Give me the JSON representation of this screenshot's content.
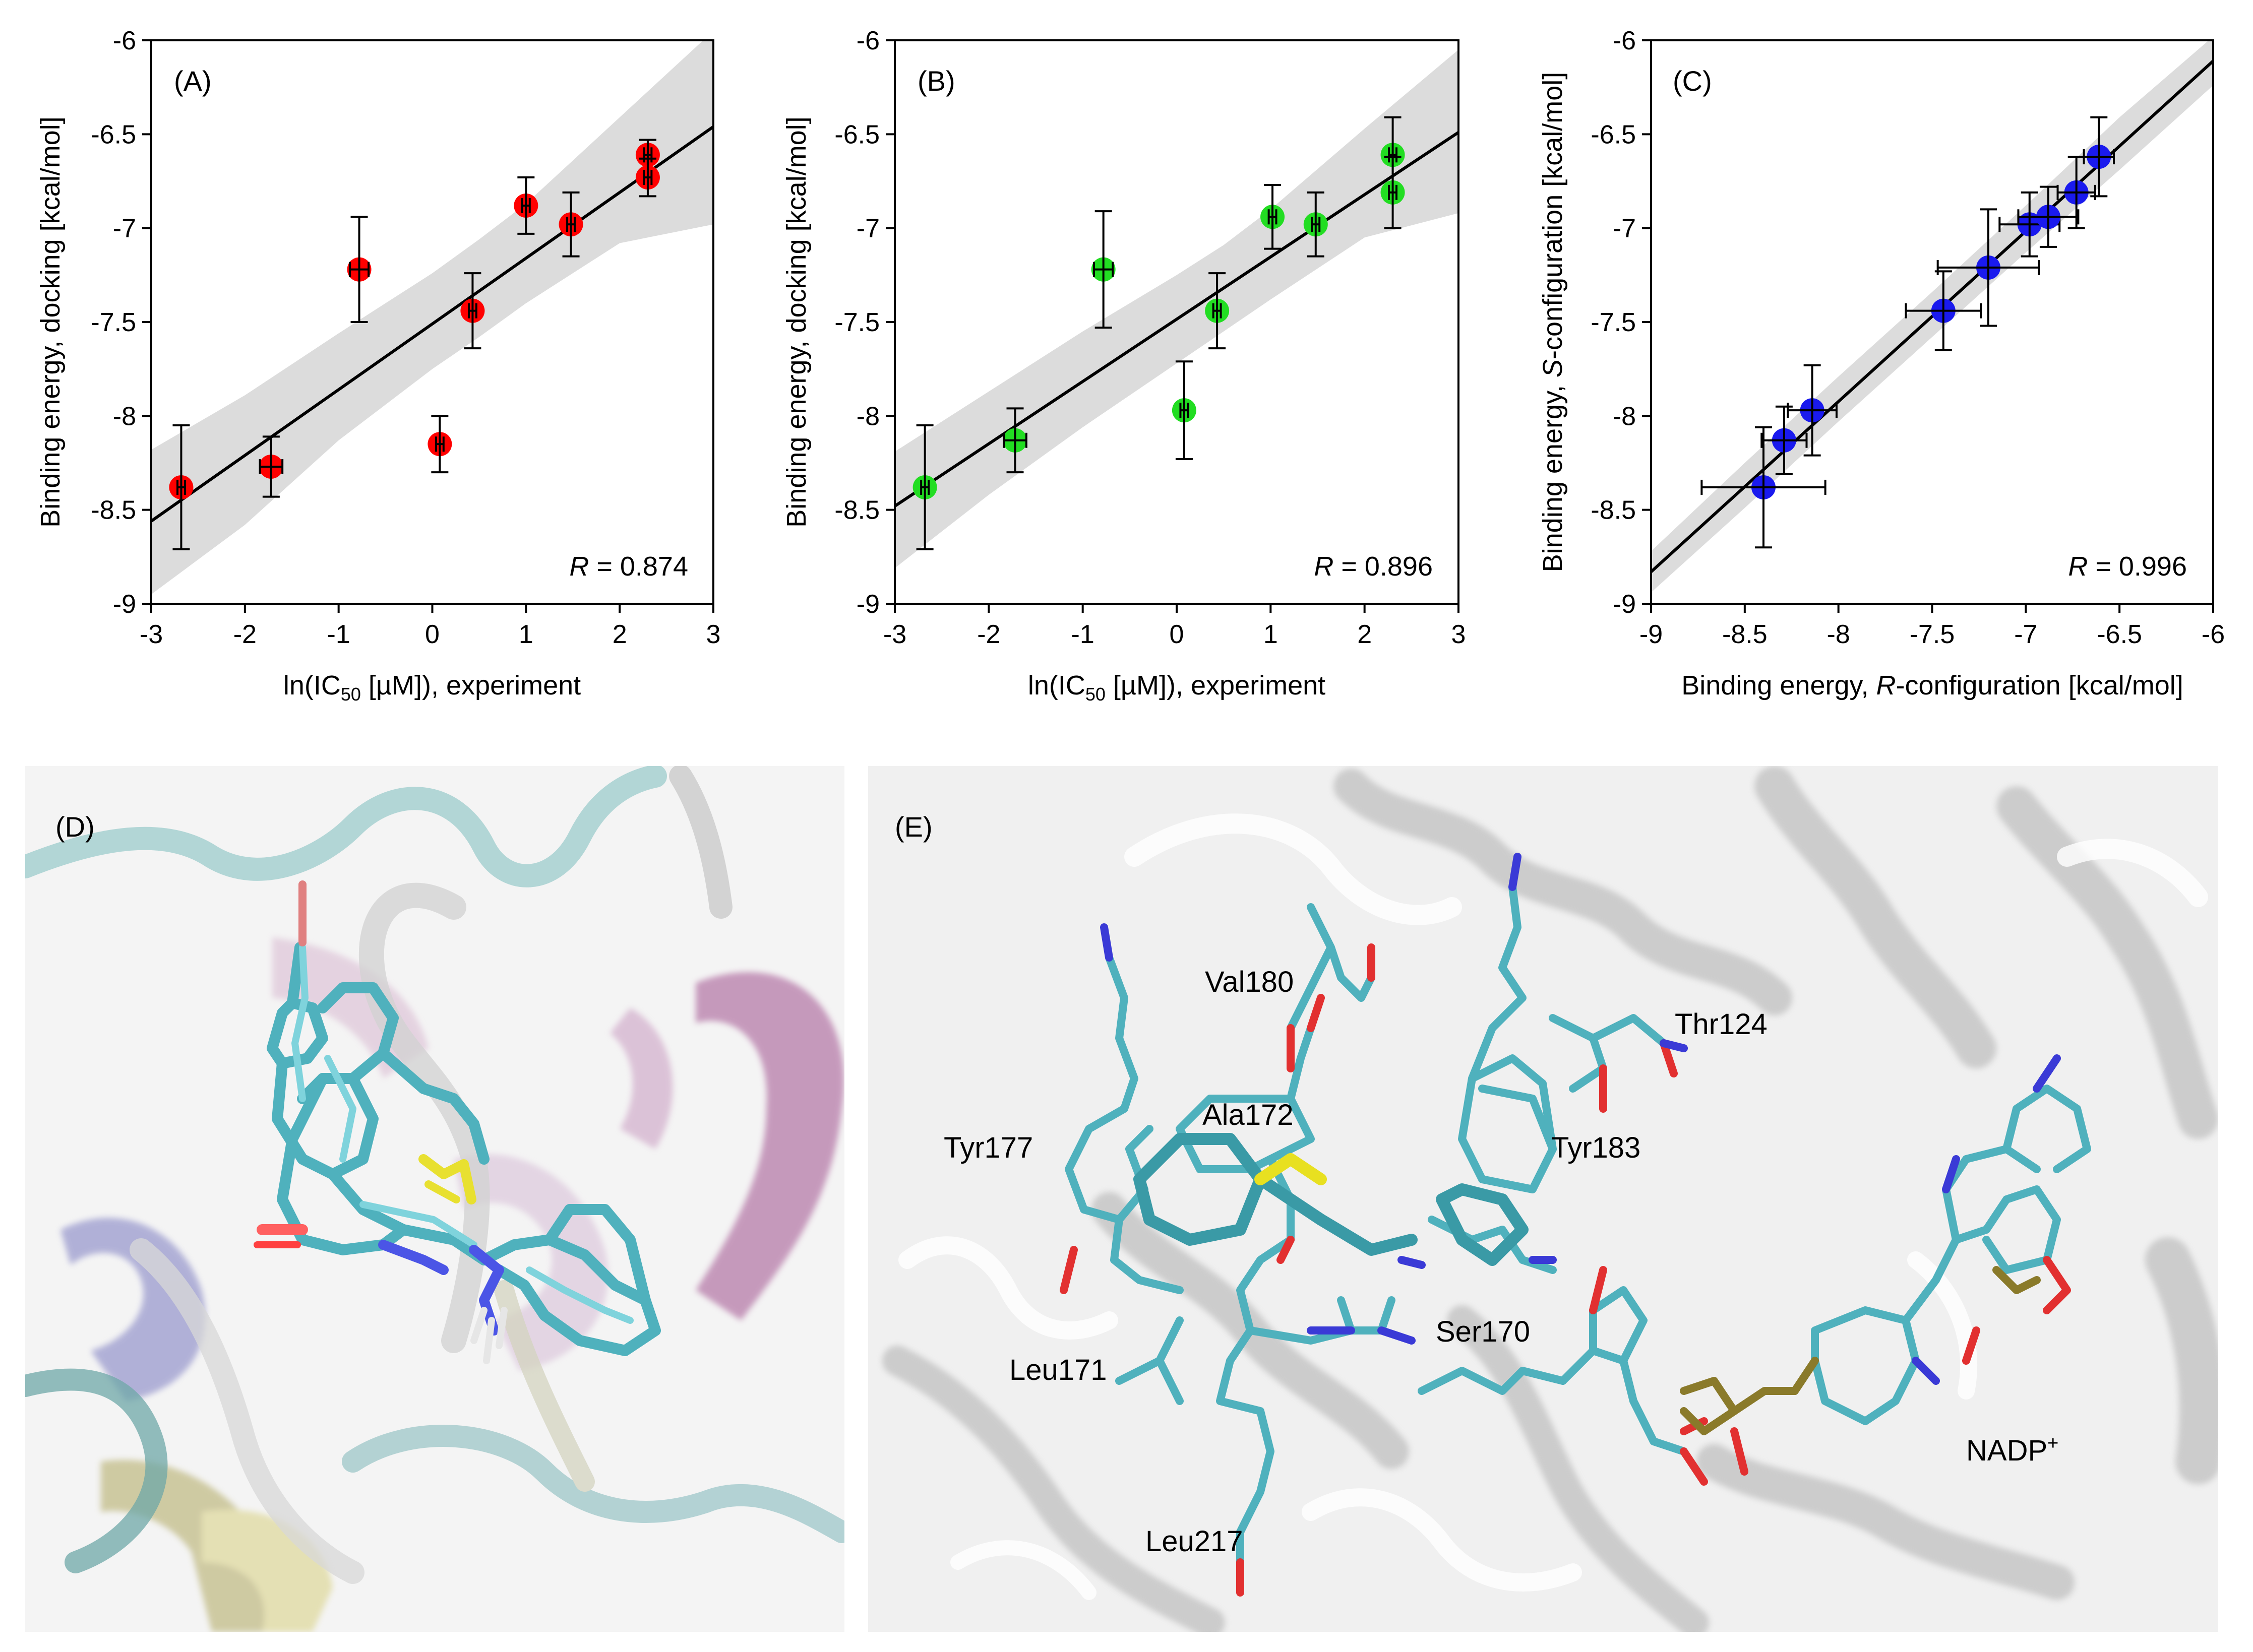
{
  "chart_data": [
    {
      "type": "scatter",
      "panel_label": "(A)",
      "xlabel_main": "ln(IC",
      "xlabel_sub": "50",
      "xlabel_tail": " [µM]), experiment",
      "ylabel": "Binding energy, docking [kcal/mol]",
      "xlim": [
        -3,
        3
      ],
      "ylim": [
        -9,
        -6
      ],
      "xticks": [
        -3,
        -2,
        -1,
        0,
        1,
        2,
        3
      ],
      "yticks": [
        -9,
        -8.5,
        -8,
        -7.5,
        -7,
        -6.5,
        -6
      ],
      "xtick_labels": [
        "-3",
        "-2",
        "-1",
        "0",
        "1",
        "2",
        "3"
      ],
      "ytick_labels": [
        "-9",
        "-8.5",
        "-8",
        "-7.5",
        "-7",
        "-6.5",
        "-6"
      ],
      "r_var": "R",
      "r_text": " = 0.874",
      "marker_color": "#ff0000",
      "fit": {
        "x": [
          -3,
          3
        ],
        "y": [
          -8.56,
          -6.46
        ]
      },
      "band_upper": {
        "x": [
          -3,
          -2,
          -1,
          0,
          0.5,
          1,
          2,
          3
        ],
        "y": [
          -8.18,
          -7.89,
          -7.56,
          -7.24,
          -7.06,
          -6.87,
          -6.41,
          -5.95
        ]
      },
      "band_lower": {
        "x": [
          -3,
          -2,
          -1,
          0,
          0.5,
          1,
          2,
          3
        ],
        "y": [
          -8.95,
          -8.58,
          -8.13,
          -7.75,
          -7.58,
          -7.4,
          -7.08,
          -6.98
        ]
      },
      "points": [
        {
          "x": -2.68,
          "y": -8.38,
          "xerr": 0.04,
          "yerr": 0.33
        },
        {
          "x": -1.72,
          "y": -8.27,
          "xerr": 0.12,
          "yerr": 0.16
        },
        {
          "x": -0.78,
          "y": -7.22,
          "xerr": 0.1,
          "yerr": 0.28
        },
        {
          "x": 0.08,
          "y": -8.15,
          "xerr": 0.04,
          "yerr": 0.15
        },
        {
          "x": 0.43,
          "y": -7.44,
          "xerr": 0.04,
          "yerr": 0.2
        },
        {
          "x": 1.0,
          "y": -6.88,
          "xerr": 0.04,
          "yerr": 0.15
        },
        {
          "x": 1.48,
          "y": -6.98,
          "xerr": 0.04,
          "yerr": 0.17
        },
        {
          "x": 2.3,
          "y": -6.61,
          "xerr": 0.04,
          "yerr": 0.08
        },
        {
          "x": 2.3,
          "y": -6.73,
          "xerr": 0.04,
          "yerr": 0.1
        }
      ]
    },
    {
      "type": "scatter",
      "panel_label": "(B)",
      "xlabel_main": "ln(IC",
      "xlabel_sub": "50",
      "xlabel_tail": " [µM]), experiment",
      "ylabel": "Binding energy, docking [kcal/mol]",
      "xlim": [
        -3,
        3
      ],
      "ylim": [
        -9,
        -6
      ],
      "xticks": [
        -3,
        -2,
        -1,
        0,
        1,
        2,
        3
      ],
      "yticks": [
        -9,
        -8.5,
        -8,
        -7.5,
        -7,
        -6.5,
        -6
      ],
      "xtick_labels": [
        "-3",
        "-2",
        "-1",
        "0",
        "1",
        "2",
        "3"
      ],
      "ytick_labels": [
        "-9",
        "-8.5",
        "-8",
        "-7.5",
        "-7",
        "-6.5",
        "-6"
      ],
      "r_var": "R",
      "r_text": " = 0.896",
      "marker_color": "#22dd22",
      "fit": {
        "x": [
          -3,
          3
        ],
        "y": [
          -8.48,
          -6.49
        ]
      },
      "band_upper": {
        "x": [
          -3,
          -2,
          -1,
          0,
          0.5,
          1,
          2,
          3
        ],
        "y": [
          -8.19,
          -7.87,
          -7.55,
          -7.25,
          -7.09,
          -6.9,
          -6.47,
          -6.05
        ]
      },
      "band_lower": {
        "x": [
          -3,
          -2,
          -1,
          0,
          0.5,
          1,
          2,
          3
        ],
        "y": [
          -8.81,
          -8.42,
          -8.06,
          -7.72,
          -7.55,
          -7.38,
          -7.05,
          -6.92
        ]
      },
      "points": [
        {
          "x": -2.68,
          "y": -8.38,
          "xerr": 0.04,
          "yerr": 0.33
        },
        {
          "x": -1.72,
          "y": -8.13,
          "xerr": 0.12,
          "yerr": 0.17
        },
        {
          "x": -0.78,
          "y": -7.22,
          "xerr": 0.1,
          "yerr": 0.31
        },
        {
          "x": 0.08,
          "y": -7.97,
          "xerr": 0.04,
          "yerr": 0.26
        },
        {
          "x": 0.43,
          "y": -7.44,
          "xerr": 0.04,
          "yerr": 0.2
        },
        {
          "x": 1.02,
          "y": -6.94,
          "xerr": 0.04,
          "yerr": 0.17
        },
        {
          "x": 1.48,
          "y": -6.98,
          "xerr": 0.04,
          "yerr": 0.17
        },
        {
          "x": 2.3,
          "y": -6.61,
          "xerr": 0.04,
          "yerr": 0.2
        },
        {
          "x": 2.3,
          "y": -6.81,
          "xerr": 0.04,
          "yerr": 0.19
        }
      ]
    },
    {
      "type": "scatter",
      "panel_label": "(C)",
      "xlabel_main": "Binding energy, ",
      "xlabel_var": "R",
      "xlabel_tail": "-configuration [kcal/mol]",
      "ylabel_main": "Binding energy, ",
      "ylabel_var": "S",
      "ylabel_tail": "-configuration [kcal/mol]",
      "xlim": [
        -9,
        -6
      ],
      "ylim": [
        -9,
        -6
      ],
      "xticks": [
        -9,
        -8.5,
        -8,
        -7.5,
        -7,
        -6.5,
        -6
      ],
      "yticks": [
        -9,
        -8.5,
        -8,
        -7.5,
        -7,
        -6.5,
        -6
      ],
      "xtick_labels": [
        "-9",
        "-8.5",
        "-8",
        "-7.5",
        "-7",
        "-6.5",
        "-6"
      ],
      "ytick_labels": [
        "-9",
        "-8.5",
        "-8",
        "-7.5",
        "-7",
        "-6.5",
        "-6"
      ],
      "r_var": "R",
      "r_text": " = 0.996",
      "marker_color": "#1a1aee",
      "fit": {
        "x": [
          -9,
          -6
        ],
        "y": [
          -8.83,
          -6.11
        ]
      },
      "band_upper": {
        "x": [
          -9,
          -8.5,
          -8,
          -7.5,
          -7,
          -6.5,
          -6
        ],
        "y": [
          -8.72,
          -8.25,
          -7.79,
          -7.34,
          -6.88,
          -6.41,
          -5.98
        ]
      },
      "band_lower": {
        "x": [
          -9,
          -8.5,
          -8,
          -7.5,
          -7,
          -6.5,
          -6
        ],
        "y": [
          -8.94,
          -8.49,
          -8.03,
          -7.58,
          -7.13,
          -6.69,
          -6.24
        ]
      },
      "points": [
        {
          "x": -8.4,
          "y": -8.38,
          "xerr": 0.33,
          "yerr": 0.32
        },
        {
          "x": -8.29,
          "y": -8.13,
          "xerr": 0.12,
          "yerr": 0.18
        },
        {
          "x": -8.14,
          "y": -7.97,
          "xerr": 0.13,
          "yerr": 0.24
        },
        {
          "x": -7.44,
          "y": -7.44,
          "xerr": 0.2,
          "yerr": 0.21
        },
        {
          "x": -7.2,
          "y": -7.21,
          "xerr": 0.27,
          "yerr": 0.31
        },
        {
          "x": -6.98,
          "y": -6.98,
          "xerr": 0.16,
          "yerr": 0.17
        },
        {
          "x": -6.88,
          "y": -6.94,
          "xerr": 0.16,
          "yerr": 0.16
        },
        {
          "x": -6.73,
          "y": -6.81,
          "xerr": 0.1,
          "yerr": 0.19
        },
        {
          "x": -6.61,
          "y": -6.62,
          "xerr": 0.08,
          "yerr": 0.21
        }
      ]
    }
  ],
  "images": {
    "d": {
      "label": "(D)",
      "alt": "Superimposed docked ligand poses in binding pocket"
    },
    "e": {
      "label": "(E)",
      "alt": "Binding site residues around docked ligand and NADP+",
      "residues": [
        {
          "name": "Val180"
        },
        {
          "name": "Thr124"
        },
        {
          "name": "Ala172"
        },
        {
          "name": "Tyr177"
        },
        {
          "name": "Tyr183"
        },
        {
          "name": "Ser170"
        },
        {
          "name": "Leu171"
        },
        {
          "name": "NADP"
        },
        {
          "name": "Leu217"
        }
      ],
      "nadp_sup": "+"
    }
  },
  "colors": {
    "band": "#dcdcdc",
    "fit_line": "#000000",
    "stick_cyan": "#5ab9c4",
    "ribbon": "#cfcfcf",
    "oxygen": "#e23030",
    "nitrogen": "#3333dd",
    "sulfur": "#e8e020",
    "phosphorus": "#8a7a2a"
  }
}
